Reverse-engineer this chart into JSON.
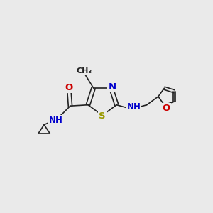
{
  "bg_color": "#eaeaea",
  "bond_color": "#222222",
  "bond_width": 1.2,
  "atom_colors": {
    "N": "#0000cc",
    "O": "#cc0000",
    "S": "#999900",
    "C": "#222222"
  },
  "font_size": 8.5,
  "figsize": [
    3.0,
    3.0
  ],
  "dpi": 100,
  "xlim": [
    0,
    10
  ],
  "ylim": [
    0,
    10
  ]
}
